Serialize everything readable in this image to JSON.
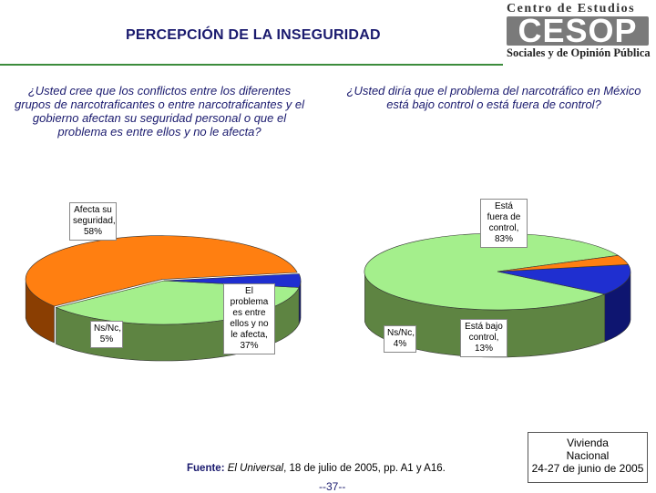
{
  "header": {
    "title": "PERCEPCIÓN DE LA INSEGURIDAD",
    "logo_top": "Centro de Estudios",
    "logo_mark": "CESOP",
    "logo_bottom": "Sociales y de Opinión Pública",
    "logo_color": "#7a7a7a",
    "rule_color": "#3c8c3c"
  },
  "chart_data": [
    {
      "type": "pie",
      "question": "¿Usted cree que los conflictos entre los diferentes grupos de narcotraficantes o entre narcotraficantes y el gobierno afectan su seguridad personal o que el problema es entre ellos y no le afecta?",
      "slices": [
        {
          "label": "Afecta su seguridad,",
          "value": 58,
          "value_text": "58%",
          "color": "#ff7f11",
          "side": "#8a3e02"
        },
        {
          "label": "El problema es entre ellos y no le afecta,",
          "value": 37,
          "value_text": "37%",
          "color": "#a4ef8c",
          "side": "#5e8442"
        },
        {
          "label": "Ns/Nc,",
          "value": 5,
          "value_text": "5%",
          "color": "#1f2fd0",
          "side": "#0e1570"
        }
      ]
    },
    {
      "type": "pie",
      "question": "¿Usted diría que el problema del narcotráfico en México está bajo control o está fuera de control?",
      "slices": [
        {
          "label": "Está fuera de control,",
          "value": 83,
          "value_text": "83%",
          "color": "#a4ef8c",
          "side": "#5e8442"
        },
        {
          "label": "Está bajo control,",
          "value": 13,
          "value_text": "13%",
          "color": "#1f2fd0",
          "side": "#0e1570"
        },
        {
          "label": "Ns/Nc,",
          "value": 4,
          "value_text": "4%",
          "color": "#ff7f11",
          "side": "#8a3e02"
        }
      ]
    }
  ],
  "footer": {
    "source_label": "Fuente:",
    "source_pub": "El Universal",
    "source_rest": ", 18 de julio de 2005, pp. A1 y A16.",
    "page": "--37--",
    "survey_line1": "Vivienda",
    "survey_line2": "Nacional",
    "survey_line3": "24-27 de junio de 2005"
  }
}
